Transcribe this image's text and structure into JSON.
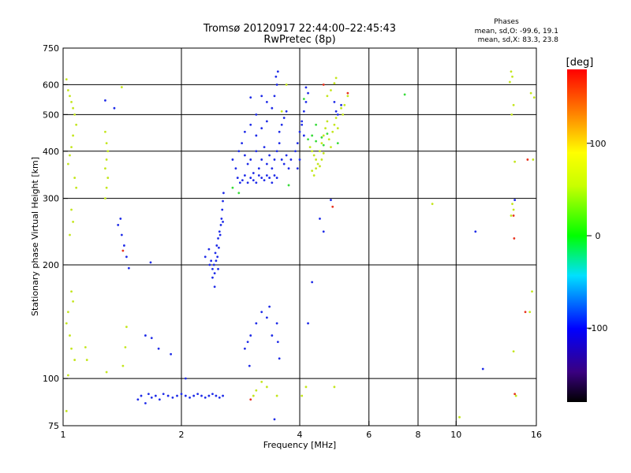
{
  "chart_data": {
    "type": "scatter",
    "title": "Tromsø 20120917 22:44:00–22:45:43",
    "subtitle": "RwPretec (8p)",
    "xlabel": "Frequency [MHz]",
    "ylabel": "Stationary phase Virtual Height [km]",
    "x_scale": "log",
    "y_scale": "log",
    "xlim": [
      1,
      16
    ],
    "ylim": [
      75,
      750
    ],
    "x_ticks": [
      1,
      2,
      4,
      6,
      8,
      10,
      16
    ],
    "y_ticks": [
      75,
      100,
      200,
      300,
      400,
      500,
      600,
      750
    ],
    "x_grid": [
      2,
      4,
      6,
      8,
      10
    ],
    "y_grid": [
      100,
      200,
      300,
      400,
      500,
      600
    ],
    "grid": true,
    "legend": {
      "title": "Phases",
      "lines": [
        "mean, sd,O: -99.6, 19.1",
        "mean, sd,X:  83.3, 23.8"
      ],
      "position": "top-right"
    },
    "colorbar": {
      "label": "[deg]",
      "range": [
        -180,
        180
      ],
      "ticks": [
        100,
        0,
        -100
      ],
      "position": "right"
    },
    "series": [
      {
        "points": [
          [
            1.55,
            88
          ],
          [
            1.58,
            90
          ],
          [
            1.62,
            86
          ],
          [
            1.65,
            91
          ],
          [
            1.68,
            89
          ],
          [
            1.72,
            90
          ],
          [
            1.76,
            88
          ],
          [
            1.8,
            91
          ],
          [
            1.85,
            90
          ],
          [
            1.9,
            89
          ],
          [
            1.95,
            90
          ],
          [
            2.0,
            91
          ],
          [
            2.05,
            90
          ],
          [
            2.1,
            89
          ],
          [
            2.15,
            90
          ],
          [
            2.2,
            91
          ],
          [
            2.25,
            90
          ],
          [
            2.3,
            89
          ],
          [
            2.35,
            90
          ],
          [
            2.4,
            91
          ],
          [
            2.45,
            90
          ],
          [
            2.5,
            89
          ],
          [
            2.55,
            90
          ],
          [
            2.05,
            100
          ],
          [
            1.62,
            130
          ],
          [
            1.68,
            128
          ],
          [
            1.75,
            120
          ],
          [
            1.67,
            203
          ],
          [
            1.88,
            116
          ],
          [
            1.38,
            255
          ],
          [
            1.41,
            240
          ],
          [
            1.43,
            225
          ],
          [
            1.45,
            210
          ],
          [
            1.47,
            196
          ],
          [
            1.4,
            265
          ],
          [
            1.28,
            545
          ],
          [
            1.35,
            520
          ],
          [
            2.3,
            210
          ],
          [
            2.35,
            220
          ],
          [
            2.38,
            205
          ],
          [
            2.4,
            195
          ],
          [
            2.42,
            200
          ],
          [
            2.44,
            215
          ],
          [
            2.46,
            225
          ],
          [
            2.48,
            235
          ],
          [
            2.5,
            245
          ],
          [
            2.52,
            255
          ],
          [
            2.53,
            265
          ],
          [
            2.54,
            280
          ],
          [
            2.55,
            295
          ],
          [
            2.56,
            310
          ],
          [
            2.36,
            200
          ],
          [
            2.4,
            185
          ],
          [
            2.43,
            190
          ],
          [
            2.45,
            205
          ],
          [
            2.47,
            210
          ],
          [
            2.49,
            222
          ],
          [
            2.51,
            240
          ],
          [
            2.55,
            260
          ],
          [
            2.43,
            175
          ],
          [
            2.48,
            195
          ],
          [
            2.7,
            380
          ],
          [
            2.75,
            360
          ],
          [
            2.8,
            400
          ],
          [
            2.85,
            420
          ],
          [
            2.9,
            390
          ],
          [
            2.95,
            370
          ],
          [
            3.0,
            380
          ],
          [
            3.05,
            350
          ],
          [
            3.1,
            400
          ],
          [
            3.15,
            360
          ],
          [
            3.2,
            380
          ],
          [
            3.25,
            410
          ],
          [
            3.3,
            370
          ],
          [
            3.35,
            390
          ],
          [
            3.4,
            360
          ],
          [
            3.45,
            380
          ],
          [
            3.5,
            400
          ],
          [
            3.55,
            420
          ],
          [
            3.6,
            380
          ],
          [
            3.65,
            370
          ],
          [
            3.7,
            390
          ],
          [
            3.75,
            360
          ],
          [
            3.8,
            380
          ],
          [
            2.78,
            340
          ],
          [
            2.82,
            330
          ],
          [
            2.86,
            335
          ],
          [
            2.9,
            345
          ],
          [
            2.95,
            330
          ],
          [
            3.0,
            340
          ],
          [
            3.05,
            335
          ],
          [
            3.1,
            330
          ],
          [
            3.15,
            345
          ],
          [
            3.2,
            340
          ],
          [
            3.25,
            335
          ],
          [
            3.3,
            345
          ],
          [
            3.35,
            340
          ],
          [
            3.4,
            330
          ],
          [
            3.45,
            345
          ],
          [
            3.5,
            340
          ],
          [
            2.9,
            450
          ],
          [
            3.0,
            470
          ],
          [
            3.1,
            440
          ],
          [
            3.2,
            460
          ],
          [
            3.3,
            480
          ],
          [
            3.4,
            520
          ],
          [
            3.45,
            560
          ],
          [
            3.5,
            600
          ],
          [
            3.52,
            650
          ],
          [
            3.48,
            630
          ],
          [
            3.3,
            540
          ],
          [
            3.2,
            560
          ],
          [
            3.0,
            555
          ],
          [
            3.1,
            500
          ],
          [
            3.6,
            470
          ],
          [
            3.65,
            490
          ],
          [
            3.7,
            510
          ],
          [
            3.55,
            450
          ],
          [
            3.9,
            400
          ],
          [
            3.95,
            420
          ],
          [
            4.0,
            450
          ],
          [
            4.05,
            480
          ],
          [
            4.1,
            510
          ],
          [
            4.15,
            540
          ],
          [
            4.2,
            570
          ],
          [
            4.15,
            590
          ],
          [
            4.05,
            470
          ],
          [
            4.1,
            440
          ],
          [
            4.0,
            380
          ],
          [
            3.95,
            360
          ],
          [
            4.95,
            510
          ],
          [
            4.9,
            540
          ],
          [
            5.0,
            500
          ],
          [
            5.1,
            530
          ],
          [
            2.9,
            120
          ],
          [
            2.95,
            125
          ],
          [
            3.0,
            130
          ],
          [
            3.1,
            140
          ],
          [
            3.2,
            150
          ],
          [
            3.3,
            145
          ],
          [
            3.35,
            155
          ],
          [
            3.4,
            130
          ],
          [
            3.5,
            140
          ],
          [
            2.98,
            108
          ],
          [
            3.52,
            125
          ],
          [
            3.55,
            113
          ],
          [
            3.45,
            78
          ],
          [
            4.2,
            140
          ],
          [
            4.3,
            180
          ],
          [
            4.8,
            297
          ],
          [
            4.5,
            265
          ],
          [
            4.6,
            245
          ],
          [
            11.2,
            245
          ],
          [
            14.1,
            297
          ],
          [
            11.7,
            106
          ]
        ]
      },
      {
        "points": [
          [
            1.02,
            620
          ],
          [
            1.03,
            580
          ],
          [
            1.04,
            560
          ],
          [
            1.05,
            540
          ],
          [
            1.06,
            520
          ],
          [
            1.07,
            500
          ],
          [
            1.08,
            470
          ],
          [
            1.06,
            440
          ],
          [
            1.05,
            410
          ],
          [
            1.04,
            390
          ],
          [
            1.03,
            370
          ],
          [
            1.07,
            340
          ],
          [
            1.08,
            320
          ],
          [
            1.05,
            280
          ],
          [
            1.06,
            260
          ],
          [
            1.04,
            240
          ],
          [
            1.05,
            170
          ],
          [
            1.06,
            160
          ],
          [
            1.03,
            150
          ],
          [
            1.02,
            140
          ],
          [
            1.04,
            130
          ],
          [
            1.05,
            120
          ],
          [
            1.07,
            112
          ],
          [
            1.03,
            102
          ],
          [
            1.02,
            82
          ],
          [
            1.14,
            121
          ],
          [
            1.15,
            112
          ],
          [
            1.28,
            450
          ],
          [
            1.29,
            420
          ],
          [
            1.3,
            400
          ],
          [
            1.29,
            380
          ],
          [
            1.28,
            360
          ],
          [
            1.3,
            340
          ],
          [
            1.29,
            320
          ],
          [
            1.28,
            300
          ],
          [
            1.29,
            104
          ],
          [
            1.41,
            591
          ],
          [
            1.45,
            137
          ],
          [
            1.44,
            121
          ],
          [
            1.42,
            108
          ],
          [
            4.25,
            410
          ],
          [
            4.3,
            400
          ],
          [
            4.35,
            390
          ],
          [
            4.4,
            380
          ],
          [
            4.45,
            370
          ],
          [
            4.5,
            400
          ],
          [
            4.55,
            420
          ],
          [
            4.6,
            440
          ],
          [
            4.65,
            460
          ],
          [
            4.7,
            480
          ],
          [
            4.75,
            430
          ],
          [
            4.8,
            410
          ],
          [
            4.85,
            450
          ],
          [
            4.9,
            470
          ],
          [
            4.95,
            490
          ],
          [
            5.0,
            460
          ],
          [
            5.1,
            520
          ],
          [
            5.15,
            500
          ],
          [
            5.2,
            530
          ],
          [
            5.3,
            560
          ],
          [
            4.9,
            605
          ],
          [
            4.95,
            625
          ],
          [
            4.7,
            560
          ],
          [
            4.8,
            580
          ],
          [
            4.3,
            355
          ],
          [
            4.4,
            360
          ],
          [
            4.5,
            365
          ],
          [
            4.35,
            345
          ],
          [
            4.55,
            380
          ],
          [
            4.6,
            395
          ],
          [
            3.7,
            600
          ],
          [
            3.6,
            510
          ],
          [
            3.5,
            90
          ],
          [
            3.3,
            95
          ],
          [
            3.2,
            98
          ],
          [
            3.1,
            93
          ],
          [
            3.05,
            90
          ],
          [
            4.15,
            95
          ],
          [
            4.05,
            90
          ],
          [
            4.9,
            95
          ],
          [
            8.7,
            290
          ],
          [
            13.8,
            650
          ],
          [
            13.9,
            630
          ],
          [
            13.7,
            610
          ],
          [
            14.0,
            530
          ],
          [
            13.85,
            500
          ],
          [
            14.1,
            375
          ],
          [
            13.9,
            290
          ],
          [
            14.0,
            280
          ],
          [
            13.8,
            270
          ],
          [
            14.0,
            118
          ],
          [
            14.2,
            90
          ],
          [
            15.6,
            170
          ],
          [
            15.4,
            150
          ],
          [
            15.7,
            380
          ],
          [
            15.5,
            570
          ],
          [
            15.8,
            555
          ],
          [
            10.2,
            79
          ]
        ]
      },
      {
        "points": [
          [
            1.42,
            218
          ],
          [
            3.0,
            88
          ],
          [
            4.85,
            285
          ],
          [
            14.0,
            270
          ],
          [
            14.05,
            235
          ],
          [
            14.1,
            91
          ],
          [
            15.2,
            380
          ],
          [
            15.0,
            150
          ],
          [
            5.3,
            570
          ],
          [
            4.6,
            600
          ]
        ]
      },
      {
        "points": [
          [
            4.2,
            430
          ],
          [
            4.3,
            440
          ],
          [
            4.4,
            425
          ],
          [
            4.55,
            435
          ],
          [
            4.6,
            415
          ],
          [
            4.7,
            445
          ],
          [
            5.0,
            420
          ],
          [
            2.7,
            320
          ],
          [
            2.8,
            310
          ],
          [
            4.1,
            550
          ],
          [
            3.75,
            325
          ],
          [
            4.4,
            470
          ],
          [
            7.4,
            565
          ]
        ]
      }
    ]
  }
}
